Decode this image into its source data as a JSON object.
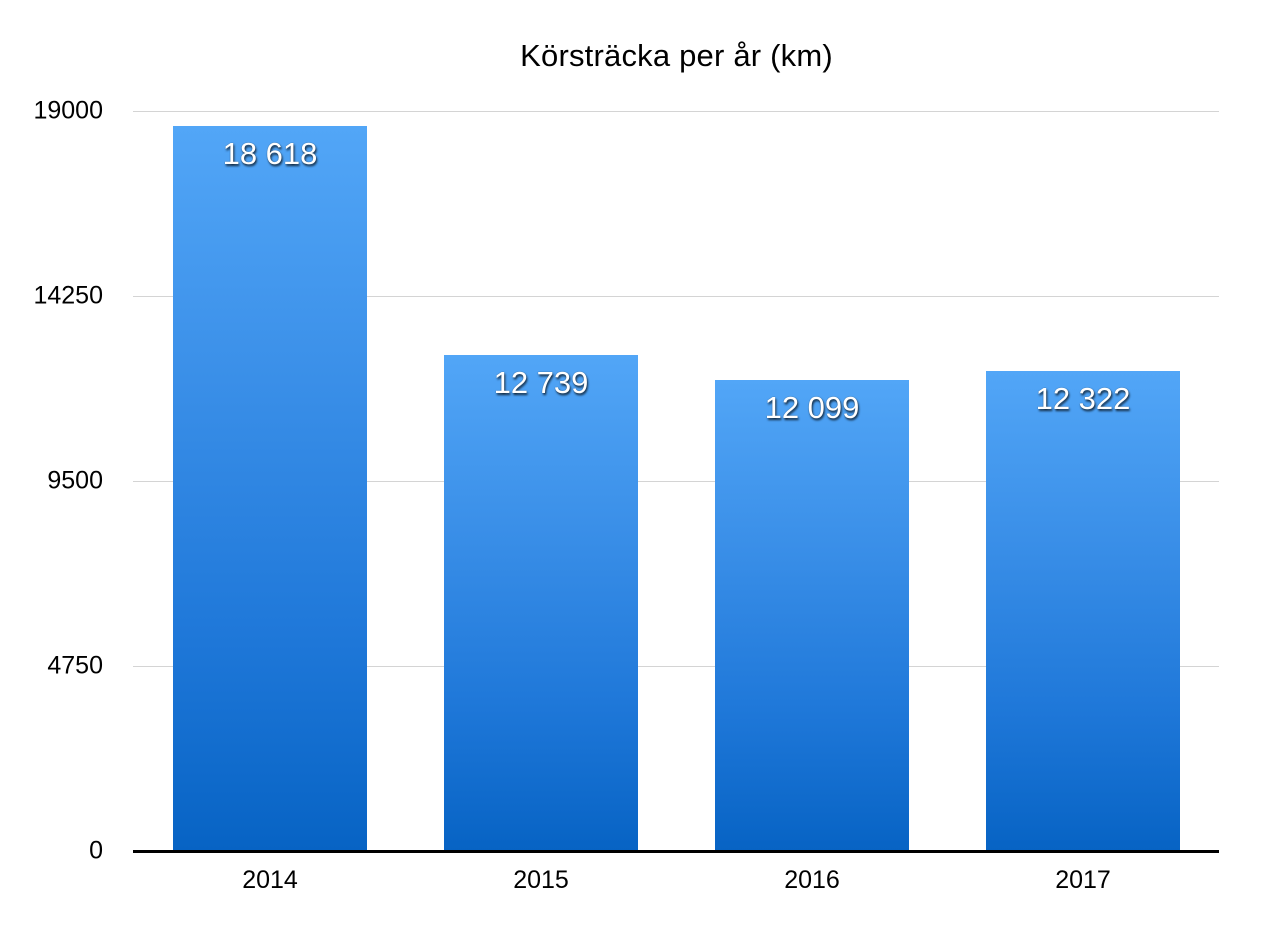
{
  "chart_data": {
    "type": "bar",
    "title": "Körsträcka per år (km)",
    "xlabel": "",
    "ylabel": "",
    "categories": [
      "2014",
      "2015",
      "2016",
      "2017"
    ],
    "values": [
      18618,
      12739,
      12099,
      12322
    ],
    "value_labels": [
      "18 618",
      "12 739",
      "12 099",
      "12 322"
    ],
    "ylim": [
      0,
      19000
    ],
    "yticks": [
      0,
      4750,
      9500,
      14250,
      19000
    ],
    "ytick_labels": [
      "0",
      "4750",
      "9500",
      "14250",
      "19000"
    ],
    "grid": true,
    "legend": "none",
    "bar_color": "#2f86e3"
  }
}
